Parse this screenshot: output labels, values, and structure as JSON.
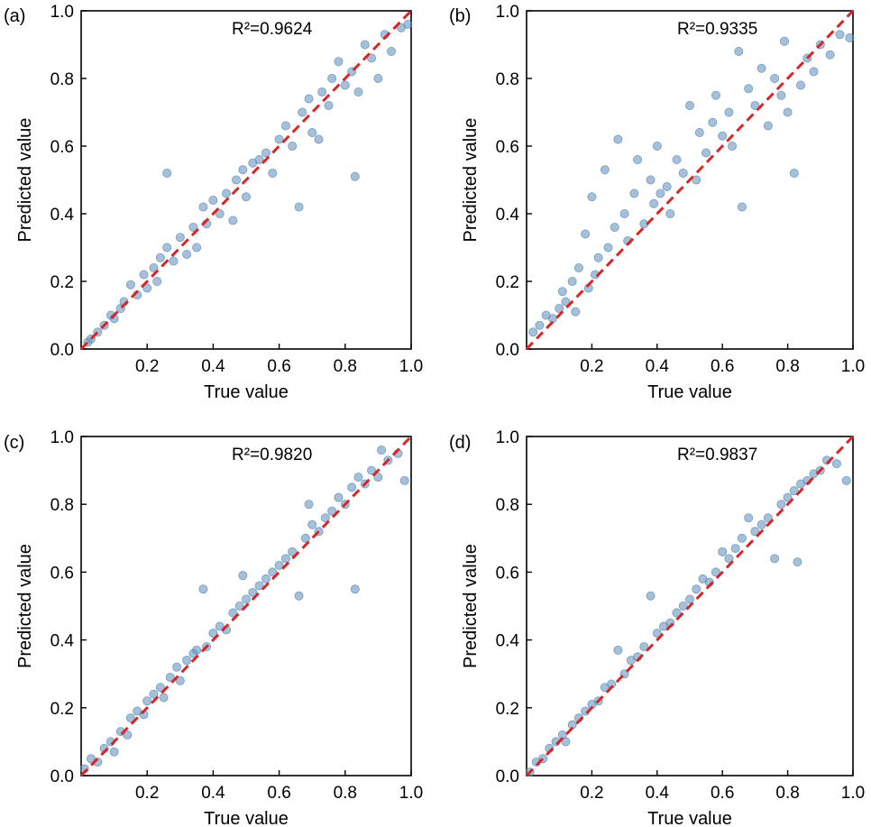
{
  "chart_data": [
    {
      "type": "scatter",
      "panel_label": "(a)",
      "r2_text": "R²=0.9624",
      "xlabel": "True value",
      "ylabel": "Predicted value",
      "xlim": [
        0,
        1.0
      ],
      "ylim": [
        0,
        1.0
      ],
      "x_ticks": [
        "0.2",
        "0.4",
        "0.6",
        "0.8",
        "1.0"
      ],
      "y_ticks": [
        "0.0",
        "0.2",
        "0.4",
        "0.6",
        "0.8",
        "1.0"
      ],
      "reference_line": {
        "from": [
          0,
          0
        ],
        "to": [
          1,
          1
        ],
        "style": "dashed",
        "color": "#d62728"
      },
      "marker_color": "#5b8db8",
      "points": [
        [
          0.02,
          0.02
        ],
        [
          0.03,
          0.03
        ],
        [
          0.05,
          0.05
        ],
        [
          0.07,
          0.07
        ],
        [
          0.09,
          0.1
        ],
        [
          0.1,
          0.09
        ],
        [
          0.12,
          0.12
        ],
        [
          0.13,
          0.14
        ],
        [
          0.15,
          0.19
        ],
        [
          0.17,
          0.16
        ],
        [
          0.19,
          0.22
        ],
        [
          0.2,
          0.18
        ],
        [
          0.22,
          0.24
        ],
        [
          0.23,
          0.2
        ],
        [
          0.24,
          0.27
        ],
        [
          0.26,
          0.3
        ],
        [
          0.26,
          0.52
        ],
        [
          0.28,
          0.26
        ],
        [
          0.3,
          0.33
        ],
        [
          0.32,
          0.28
        ],
        [
          0.34,
          0.36
        ],
        [
          0.35,
          0.3
        ],
        [
          0.37,
          0.42
        ],
        [
          0.38,
          0.37
        ],
        [
          0.4,
          0.44
        ],
        [
          0.42,
          0.4
        ],
        [
          0.44,
          0.46
        ],
        [
          0.46,
          0.38
        ],
        [
          0.47,
          0.5
        ],
        [
          0.49,
          0.53
        ],
        [
          0.5,
          0.45
        ],
        [
          0.52,
          0.55
        ],
        [
          0.54,
          0.56
        ],
        [
          0.56,
          0.58
        ],
        [
          0.58,
          0.52
        ],
        [
          0.6,
          0.62
        ],
        [
          0.62,
          0.66
        ],
        [
          0.64,
          0.6
        ],
        [
          0.66,
          0.42
        ],
        [
          0.67,
          0.7
        ],
        [
          0.69,
          0.74
        ],
        [
          0.7,
          0.64
        ],
        [
          0.72,
          0.62
        ],
        [
          0.73,
          0.76
        ],
        [
          0.75,
          0.72
        ],
        [
          0.76,
          0.8
        ],
        [
          0.78,
          0.85
        ],
        [
          0.8,
          0.78
        ],
        [
          0.82,
          0.82
        ],
        [
          0.83,
          0.51
        ],
        [
          0.84,
          0.76
        ],
        [
          0.86,
          0.9
        ],
        [
          0.88,
          0.86
        ],
        [
          0.9,
          0.8
        ],
        [
          0.92,
          0.93
        ],
        [
          0.94,
          0.88
        ],
        [
          0.97,
          0.95
        ],
        [
          0.99,
          0.96
        ]
      ]
    },
    {
      "type": "scatter",
      "panel_label": "(b)",
      "r2_text": "R²=0.9335",
      "xlabel": "True value",
      "ylabel": "Predicted value",
      "xlim": [
        0,
        1.0
      ],
      "ylim": [
        0,
        1.0
      ],
      "x_ticks": [
        "0.2",
        "0.4",
        "0.6",
        "0.8",
        "1.0"
      ],
      "y_ticks": [
        "0.0",
        "0.2",
        "0.4",
        "0.6",
        "0.8",
        "1.0"
      ],
      "reference_line": {
        "from": [
          0,
          0
        ],
        "to": [
          1,
          1
        ],
        "style": "dashed",
        "color": "#d62728"
      },
      "marker_color": "#5b8db8",
      "points": [
        [
          0.02,
          0.05
        ],
        [
          0.04,
          0.07
        ],
        [
          0.06,
          0.1
        ],
        [
          0.08,
          0.09
        ],
        [
          0.1,
          0.12
        ],
        [
          0.11,
          0.17
        ],
        [
          0.12,
          0.14
        ],
        [
          0.14,
          0.2
        ],
        [
          0.15,
          0.11
        ],
        [
          0.16,
          0.24
        ],
        [
          0.18,
          0.34
        ],
        [
          0.19,
          0.18
        ],
        [
          0.2,
          0.45
        ],
        [
          0.21,
          0.22
        ],
        [
          0.22,
          0.27
        ],
        [
          0.24,
          0.53
        ],
        [
          0.25,
          0.3
        ],
        [
          0.27,
          0.36
        ],
        [
          0.28,
          0.62
        ],
        [
          0.3,
          0.4
        ],
        [
          0.31,
          0.32
        ],
        [
          0.33,
          0.46
        ],
        [
          0.34,
          0.56
        ],
        [
          0.36,
          0.37
        ],
        [
          0.38,
          0.5
        ],
        [
          0.39,
          0.43
        ],
        [
          0.4,
          0.6
        ],
        [
          0.41,
          0.46
        ],
        [
          0.43,
          0.48
        ],
        [
          0.44,
          0.4
        ],
        [
          0.46,
          0.56
        ],
        [
          0.48,
          0.52
        ],
        [
          0.5,
          0.72
        ],
        [
          0.52,
          0.5
        ],
        [
          0.53,
          0.64
        ],
        [
          0.55,
          0.58
        ],
        [
          0.57,
          0.67
        ],
        [
          0.58,
          0.75
        ],
        [
          0.6,
          0.63
        ],
        [
          0.62,
          0.7
        ],
        [
          0.63,
          0.6
        ],
        [
          0.65,
          0.88
        ],
        [
          0.66,
          0.42
        ],
        [
          0.68,
          0.77
        ],
        [
          0.7,
          0.72
        ],
        [
          0.72,
          0.83
        ],
        [
          0.74,
          0.66
        ],
        [
          0.76,
          0.8
        ],
        [
          0.78,
          0.75
        ],
        [
          0.79,
          0.91
        ],
        [
          0.8,
          0.7
        ],
        [
          0.82,
          0.52
        ],
        [
          0.84,
          0.78
        ],
        [
          0.86,
          0.86
        ],
        [
          0.88,
          0.82
        ],
        [
          0.9,
          0.9
        ],
        [
          0.93,
          0.87
        ],
        [
          0.96,
          0.93
        ],
        [
          0.99,
          0.92
        ]
      ]
    },
    {
      "type": "scatter",
      "panel_label": "(c)",
      "r2_text": "R²=0.9820",
      "xlabel": "True value",
      "ylabel": "Predicted value",
      "xlim": [
        0,
        1.0
      ],
      "ylim": [
        0,
        1.0
      ],
      "x_ticks": [
        "0.2",
        "0.4",
        "0.6",
        "0.8",
        "1.0"
      ],
      "y_ticks": [
        "0.0",
        "0.2",
        "0.4",
        "0.6",
        "0.8",
        "1.0"
      ],
      "reference_line": {
        "from": [
          0,
          0
        ],
        "to": [
          1,
          1
        ],
        "style": "dashed",
        "color": "#d62728"
      },
      "marker_color": "#5b8db8",
      "points": [
        [
          0.01,
          0.02
        ],
        [
          0.03,
          0.05
        ],
        [
          0.05,
          0.04
        ],
        [
          0.07,
          0.08
        ],
        [
          0.09,
          0.1
        ],
        [
          0.1,
          0.07
        ],
        [
          0.12,
          0.13
        ],
        [
          0.14,
          0.12
        ],
        [
          0.15,
          0.17
        ],
        [
          0.17,
          0.19
        ],
        [
          0.19,
          0.18
        ],
        [
          0.2,
          0.22
        ],
        [
          0.22,
          0.24
        ],
        [
          0.24,
          0.26
        ],
        [
          0.25,
          0.23
        ],
        [
          0.27,
          0.29
        ],
        [
          0.29,
          0.32
        ],
        [
          0.3,
          0.28
        ],
        [
          0.32,
          0.34
        ],
        [
          0.34,
          0.36
        ],
        [
          0.35,
          0.37
        ],
        [
          0.37,
          0.55
        ],
        [
          0.38,
          0.38
        ],
        [
          0.4,
          0.42
        ],
        [
          0.42,
          0.44
        ],
        [
          0.44,
          0.43
        ],
        [
          0.46,
          0.48
        ],
        [
          0.48,
          0.5
        ],
        [
          0.49,
          0.59
        ],
        [
          0.5,
          0.52
        ],
        [
          0.52,
          0.54
        ],
        [
          0.54,
          0.56
        ],
        [
          0.56,
          0.58
        ],
        [
          0.58,
          0.6
        ],
        [
          0.6,
          0.62
        ],
        [
          0.62,
          0.64
        ],
        [
          0.64,
          0.66
        ],
        [
          0.66,
          0.53
        ],
        [
          0.68,
          0.7
        ],
        [
          0.69,
          0.8
        ],
        [
          0.7,
          0.74
        ],
        [
          0.72,
          0.72
        ],
        [
          0.74,
          0.76
        ],
        [
          0.76,
          0.78
        ],
        [
          0.78,
          0.82
        ],
        [
          0.8,
          0.8
        ],
        [
          0.82,
          0.85
        ],
        [
          0.83,
          0.55
        ],
        [
          0.84,
          0.88
        ],
        [
          0.86,
          0.86
        ],
        [
          0.88,
          0.9
        ],
        [
          0.9,
          0.88
        ],
        [
          0.91,
          0.96
        ],
        [
          0.93,
          0.93
        ],
        [
          0.96,
          0.95
        ],
        [
          0.98,
          0.87
        ]
      ]
    },
    {
      "type": "scatter",
      "panel_label": "(d)",
      "r2_text": "R²=0.9837",
      "xlabel": "True value",
      "ylabel": "Predicted value",
      "xlim": [
        0,
        1.0
      ],
      "ylim": [
        0,
        1.0
      ],
      "x_ticks": [
        "0.2",
        "0.4",
        "0.6",
        "0.8",
        "1.0"
      ],
      "y_ticks": [
        "0.0",
        "0.2",
        "0.4",
        "0.6",
        "0.8",
        "1.0"
      ],
      "reference_line": {
        "from": [
          0,
          0
        ],
        "to": [
          1,
          1
        ],
        "style": "dashed",
        "color": "#d62728"
      },
      "marker_color": "#5b8db8",
      "points": [
        [
          0.01,
          0.01
        ],
        [
          0.03,
          0.04
        ],
        [
          0.05,
          0.05
        ],
        [
          0.07,
          0.08
        ],
        [
          0.09,
          0.1
        ],
        [
          0.11,
          0.12
        ],
        [
          0.12,
          0.1
        ],
        [
          0.14,
          0.15
        ],
        [
          0.16,
          0.17
        ],
        [
          0.18,
          0.19
        ],
        [
          0.2,
          0.21
        ],
        [
          0.22,
          0.22
        ],
        [
          0.24,
          0.26
        ],
        [
          0.26,
          0.27
        ],
        [
          0.28,
          0.37
        ],
        [
          0.3,
          0.3
        ],
        [
          0.32,
          0.34
        ],
        [
          0.34,
          0.35
        ],
        [
          0.36,
          0.38
        ],
        [
          0.38,
          0.53
        ],
        [
          0.4,
          0.42
        ],
        [
          0.42,
          0.44
        ],
        [
          0.44,
          0.45
        ],
        [
          0.46,
          0.48
        ],
        [
          0.48,
          0.5
        ],
        [
          0.5,
          0.52
        ],
        [
          0.52,
          0.55
        ],
        [
          0.54,
          0.58
        ],
        [
          0.56,
          0.57
        ],
        [
          0.58,
          0.6
        ],
        [
          0.6,
          0.66
        ],
        [
          0.62,
          0.64
        ],
        [
          0.64,
          0.67
        ],
        [
          0.66,
          0.7
        ],
        [
          0.68,
          0.76
        ],
        [
          0.7,
          0.72
        ],
        [
          0.72,
          0.74
        ],
        [
          0.74,
          0.76
        ],
        [
          0.76,
          0.64
        ],
        [
          0.78,
          0.8
        ],
        [
          0.8,
          0.82
        ],
        [
          0.82,
          0.84
        ],
        [
          0.83,
          0.63
        ],
        [
          0.84,
          0.86
        ],
        [
          0.86,
          0.87
        ],
        [
          0.88,
          0.89
        ],
        [
          0.9,
          0.9
        ],
        [
          0.92,
          0.93
        ],
        [
          0.95,
          0.92
        ],
        [
          0.98,
          0.87
        ]
      ]
    }
  ]
}
